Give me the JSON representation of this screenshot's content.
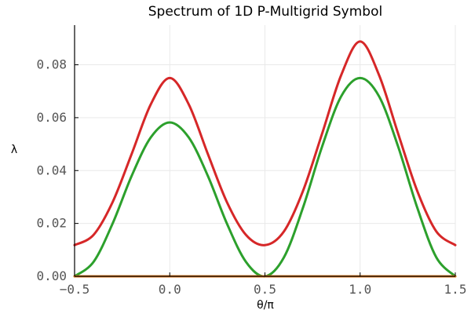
{
  "chart_data": {
    "type": "line",
    "title": "Spectrum of 1D P-Multigrid Symbol",
    "xlabel": "θ/π",
    "ylabel": "λ",
    "xlim": [
      -0.5,
      1.5
    ],
    "ylim": [
      0.0,
      0.095
    ],
    "grid": true,
    "x_ticks": [
      -0.5,
      0.0,
      0.5,
      1.0,
      1.5
    ],
    "x_tick_labels": [
      "−0.5",
      "0.0",
      "0.5",
      "1.0",
      "1.5"
    ],
    "y_ticks": [
      0.0,
      0.02,
      0.04,
      0.06,
      0.08
    ],
    "y_tick_labels": [
      "0.00",
      "0.02",
      "0.04",
      "0.06",
      "0.08"
    ],
    "x": [
      -0.5,
      -0.4,
      -0.3,
      -0.2,
      -0.1,
      0.0,
      0.1,
      0.2,
      0.3,
      0.4,
      0.5,
      0.6,
      0.7,
      0.8,
      0.9,
      1.0,
      1.1,
      1.2,
      1.3,
      1.4,
      1.5
    ],
    "series": [
      {
        "color": "#d62728",
        "values": [
          0.0118,
          0.0157,
          0.0281,
          0.0463,
          0.065,
          0.075,
          0.065,
          0.0463,
          0.0281,
          0.0157,
          0.0118,
          0.017,
          0.0323,
          0.0539,
          0.076,
          0.0888,
          0.076,
          0.0539,
          0.0323,
          0.017,
          0.0118
        ]
      },
      {
        "color": "#2ca02c",
        "values": [
          0.0,
          0.0055,
          0.02,
          0.038,
          0.0525,
          0.0582,
          0.0525,
          0.038,
          0.02,
          0.0055,
          0.0,
          0.0072,
          0.026,
          0.049,
          0.068,
          0.075,
          0.068,
          0.049,
          0.026,
          0.0072,
          0.0
        ]
      },
      {
        "color": "#e07b20",
        "values": [
          0.0,
          0.0,
          0.0,
          0.0,
          0.0,
          0.0,
          0.0,
          0.0,
          0.0,
          0.0,
          0.0,
          0.0,
          0.0,
          0.0,
          0.0,
          0.0,
          0.0,
          0.0,
          0.0,
          0.0,
          0.0
        ]
      }
    ]
  }
}
